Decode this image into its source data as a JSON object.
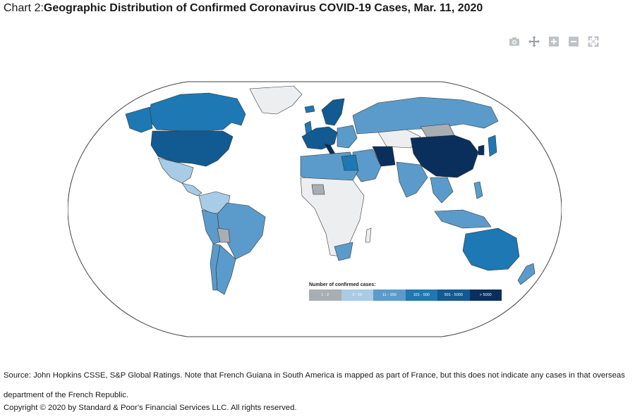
{
  "title": {
    "prefix": "Chart 2:",
    "main": "Geographic Distribution of Confirmed Coronavirus COVID-19 Cases, Mar. 11, 2020"
  },
  "toolbar": {
    "icons": [
      "camera-icon",
      "move-icon",
      "zoom-in-icon",
      "zoom-out-icon",
      "reset-icon"
    ]
  },
  "legend": {
    "title": "Number of confirmed cases:",
    "bins": [
      {
        "label": "1 - 2",
        "color": "#a9aeb3"
      },
      {
        "label": "3 - 10",
        "color": "#a8cbe6"
      },
      {
        "label": "11 - 100",
        "color": "#5a9bcb"
      },
      {
        "label": "101 - 500",
        "color": "#1d78b3"
      },
      {
        "label": "501 - 5000",
        "color": "#115a92"
      },
      {
        "label": "> 5000",
        "color": "#0a2f5c"
      }
    ]
  },
  "source": "Source: John Hopkins CSSE, S&P Global Ratings. Note that French Guiana in South America is mapped as part of France, but this does not indicate any cases in that overseas department of the French Republic.",
  "copyright": "Copyright © 2020 by Standard & Poor's Financial Services LLC. All rights reserved.",
  "colors": {
    "no_data": "#eceeef",
    "ocean": "#ffffff",
    "border": "#333333"
  }
}
